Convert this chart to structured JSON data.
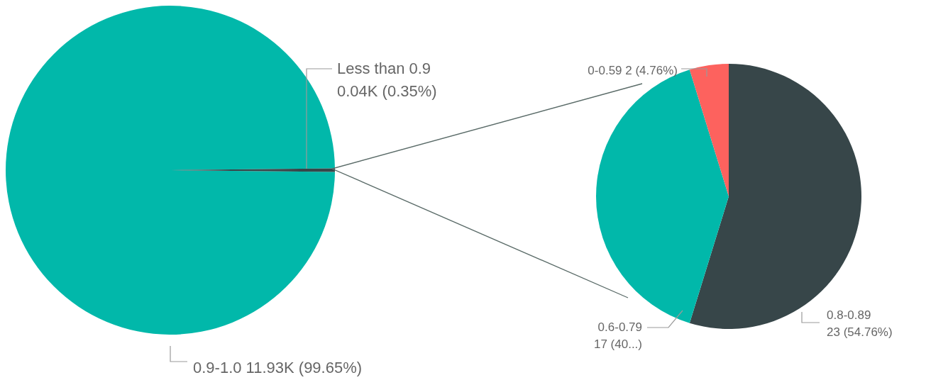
{
  "chart_data": [
    {
      "type": "pie",
      "categories": [
        "0.9-1.0",
        "Less than 0.9"
      ],
      "values": [
        11930,
        40
      ],
      "colors": [
        "#01b8aa",
        "#374649"
      ],
      "value_labels": [
        "11.93K (99.65%)",
        "0.04K (0.35%)"
      ]
    },
    {
      "type": "pie",
      "categories": [
        "0.8-0.89",
        "0.6-0.79",
        "0-0.59"
      ],
      "values": [
        23,
        17,
        2
      ],
      "colors": [
        "#374649",
        "#01b8aa",
        "#fd625e"
      ],
      "value_labels": [
        "23 (54.76%)",
        "17 (40...)",
        "2 (4.76%)"
      ]
    }
  ]
}
